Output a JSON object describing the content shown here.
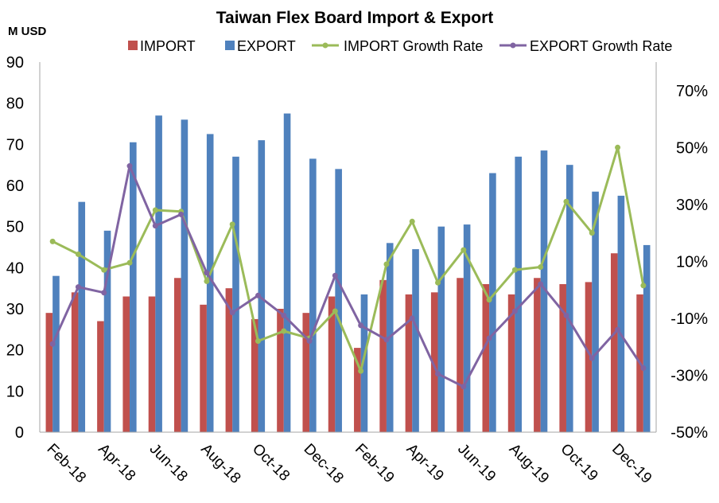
{
  "chart_data": {
    "type": "bar",
    "title": "Taiwan Flex Board Import & Export",
    "ylabel": "M USD",
    "categories": [
      "Feb-18",
      "",
      "Apr-18",
      "",
      "Jun-18",
      "",
      "Aug-18",
      "",
      "Oct-18",
      "",
      "Dec-18",
      "",
      "Feb-19",
      "",
      "Apr-19",
      "",
      "Jun-19",
      "",
      "Aug-19",
      "",
      "Oct-19",
      "",
      "Dec-19",
      ""
    ],
    "ylim": [
      0,
      90
    ],
    "yticks": [
      "0",
      "10",
      "20",
      "30",
      "40",
      "50",
      "60",
      "70",
      "80",
      "90"
    ],
    "y2lim": [
      -50,
      80
    ],
    "y2ticks": [
      "-50%",
      "-30%",
      "-10%",
      "10%",
      "30%",
      "50%",
      "70%"
    ],
    "grid": false,
    "legend": "top",
    "series": [
      {
        "name": "IMPORT",
        "type": "bar",
        "axis": "left",
        "color": "#c0504d",
        "values": [
          29,
          34,
          27,
          33,
          33,
          37.5,
          31,
          35,
          27.5,
          30,
          29,
          33,
          20.5,
          37,
          33.5,
          34,
          37.5,
          36,
          33.5,
          37.5,
          36,
          36.5,
          43.5,
          33.5
        ]
      },
      {
        "name": "EXPORT",
        "type": "bar",
        "axis": "left",
        "color": "#4f81bd",
        "values": [
          38,
          56,
          49,
          70.5,
          77,
          76,
          72.5,
          67,
          71,
          77.5,
          66.5,
          64,
          33.5,
          46,
          44.5,
          50,
          50.5,
          63,
          67,
          68.5,
          65,
          58.5,
          57.5,
          45.5
        ]
      },
      {
        "name": "IMPORT Growth Rate",
        "type": "line",
        "axis": "right",
        "color": "#9bbb59",
        "values": [
          17,
          12.5,
          7,
          9.5,
          28,
          27.5,
          3,
          23,
          -18,
          -14.5,
          -17,
          -7.5,
          -28.5,
          9,
          24,
          2.5,
          14,
          -3.5,
          7,
          8,
          31,
          20,
          50,
          1.5
        ]
      },
      {
        "name": "EXPORT Growth Rate",
        "type": "line",
        "axis": "right",
        "color": "#8064a2",
        "values": [
          -19,
          1,
          -1,
          43.5,
          22.5,
          26.5,
          6,
          -8,
          -2,
          -9,
          -18,
          5,
          -12.5,
          -17.5,
          -10,
          -29.5,
          -34,
          -17,
          -7.5,
          2,
          -9,
          -24,
          -14,
          -27.5
        ]
      }
    ]
  }
}
